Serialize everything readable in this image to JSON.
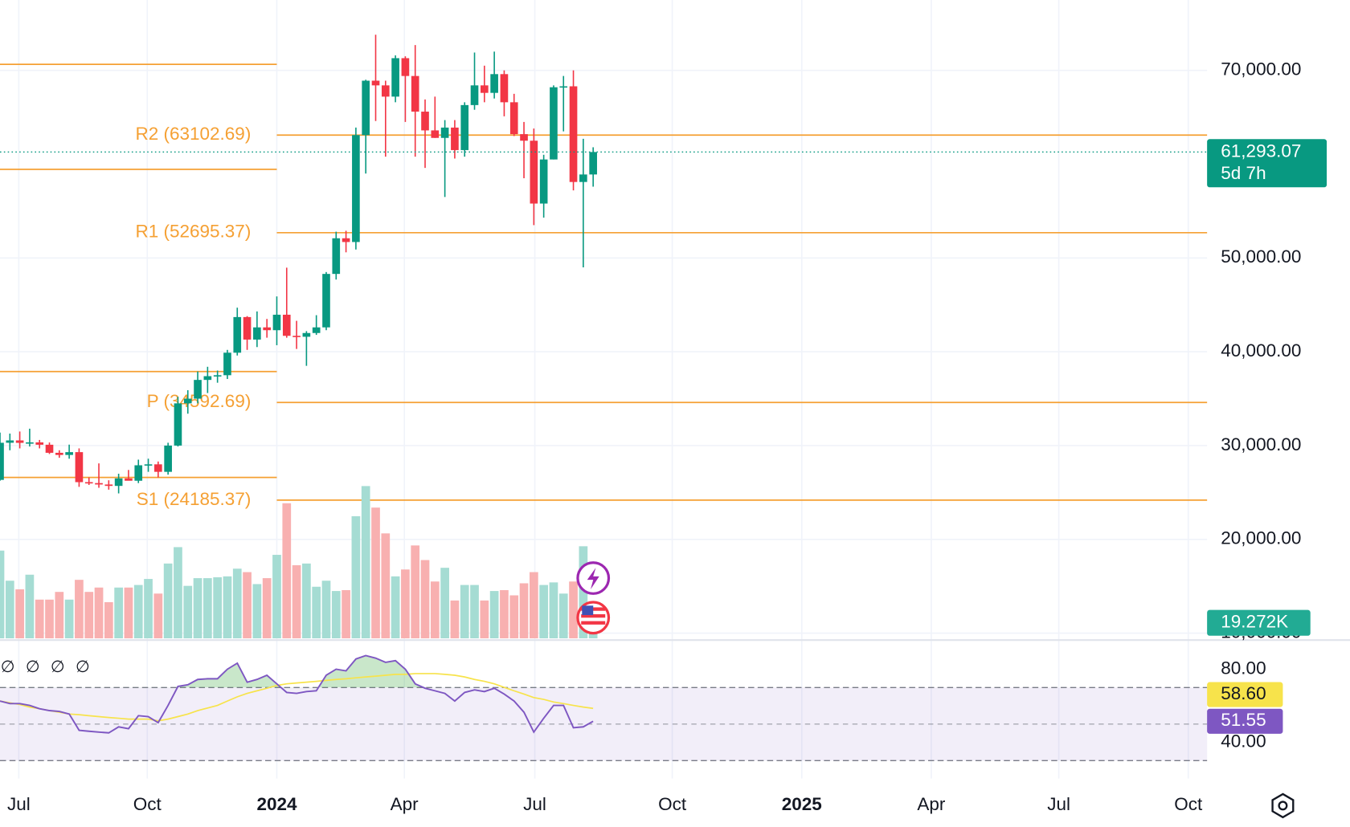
{
  "chart_data": {
    "type": "candlestick",
    "categories": [
      null,
      null,
      null,
      null,
      null,
      null,
      null,
      null,
      null,
      null,
      null,
      null,
      null,
      null,
      null,
      null,
      null,
      null,
      null,
      null,
      null,
      null,
      null,
      null,
      null,
      null,
      null,
      null,
      null,
      null,
      null,
      null,
      null,
      null,
      null,
      null,
      null,
      null,
      null,
      null,
      null,
      null,
      null,
      null,
      null,
      null,
      null,
      null,
      null,
      null,
      null,
      null,
      null,
      null,
      null,
      null,
      null,
      null,
      null,
      null,
      null
    ],
    "open": [
      26340,
      30300,
      30550,
      30290,
      30340,
      30090,
      29230,
      29000,
      29300,
      26100,
      26000,
      25850,
      25700,
      26500,
      26250,
      27900,
      28000,
      27200,
      30000,
      34500,
      35000,
      37000,
      37400,
      37500,
      39900,
      43700,
      41300,
      42600,
      42300,
      43950,
      41700,
      41600,
      42000,
      42600,
      48300,
      52100,
      51700,
      63100,
      68900,
      68400,
      67200,
      71300,
      69400,
      65600,
      63600,
      62800,
      63900,
      61500,
      66300,
      68400,
      67600,
      69600,
      66600,
      63200,
      62500,
      55800,
      60500,
      68200,
      68300,
      58100,
      58900
    ],
    "high": [
      31390,
      31280,
      31500,
      31800,
      30600,
      30330,
      29500,
      30100,
      29700,
      26600,
      28100,
      26300,
      27000,
      27400,
      28500,
      28600,
      28300,
      30300,
      35200,
      35900,
      37900,
      38400,
      38000,
      40200,
      44700,
      43800,
      44300,
      43500,
      45900,
      48970,
      43300,
      42200,
      43900,
      48500,
      52800,
      52900,
      63900,
      69000,
      73800,
      68900,
      71600,
      71500,
      72700,
      66900,
      67200,
      64700,
      64700,
      66600,
      71900,
      70500,
      72000,
      70000,
      67500,
      64500,
      63800,
      61000,
      68400,
      69400,
      70000,
      62700,
      61800
    ],
    "low": [
      26250,
      29500,
      29700,
      29900,
      29700,
      29100,
      28700,
      28600,
      25600,
      25800,
      25500,
      25300,
      24900,
      26300,
      26000,
      27200,
      26600,
      26900,
      29900,
      33400,
      34500,
      35600,
      36700,
      37100,
      39600,
      40200,
      40500,
      41500,
      40700,
      41500,
      40300,
      38500,
      41800,
      42300,
      47700,
      50600,
      50900,
      59000,
      64600,
      60800,
      66600,
      64500,
      60800,
      59600,
      62800,
      56500,
      60600,
      60800,
      65800,
      66600,
      67000,
      65100,
      63000,
      58500,
      53500,
      54300,
      60500,
      63500,
      57200,
      49000,
      57600
    ],
    "close": [
      30300,
      30550,
      30290,
      30340,
      30090,
      29230,
      29000,
      29300,
      26100,
      26000,
      25850,
      25700,
      26500,
      26250,
      27900,
      28000,
      27200,
      30000,
      34500,
      35000,
      37000,
      37400,
      37500,
      39900,
      43700,
      41300,
      42600,
      42300,
      43950,
      41700,
      41600,
      42000,
      42600,
      48300,
      52100,
      51700,
      63100,
      68900,
      68400,
      67200,
      71300,
      69400,
      65600,
      63600,
      62800,
      63900,
      61500,
      66300,
      68400,
      67600,
      69600,
      66600,
      63200,
      62500,
      55800,
      60500,
      68200,
      68300,
      58100,
      58900,
      61293.07
    ],
    "colors": {
      "up": "#089981",
      "down": "#f23645"
    },
    "xlim": [
      0,
      122.1
    ],
    "xticks": [
      {
        "value": 1.9,
        "label": "Jul"
      },
      {
        "value": 14.9,
        "label": "Oct"
      },
      {
        "value": 28.0,
        "label": "2024"
      },
      {
        "value": 40.9,
        "label": "Apr"
      },
      {
        "value": 54.1,
        "label": "Jul"
      },
      {
        "value": 68.0,
        "label": "Oct"
      },
      {
        "value": 81.1,
        "label": "2025"
      },
      {
        "value": 94.2,
        "label": "Apr"
      },
      {
        "value": 107.1,
        "label": "Jul"
      },
      {
        "value": 120.2,
        "label": "Oct"
      }
    ],
    "ylim": [
      9450,
      77500
    ],
    "yticks": [
      {
        "value": 70000,
        "label": "70,000.00"
      },
      {
        "value": 50000,
        "label": "50,000.00"
      },
      {
        "value": 40000,
        "label": "40,000.00"
      },
      {
        "value": 30000,
        "label": "30,000.00"
      },
      {
        "value": 20000,
        "label": "20,000.00"
      },
      {
        "value": 10000,
        "label": "10,000.00"
      }
    ],
    "grid": true,
    "pivot_color": "#f5a033",
    "pivots": [
      {
        "label": "R2 (63102.69)",
        "value": 63102.69
      },
      {
        "label": "R1 (52695.37)",
        "value": 52695.37
      },
      {
        "label": "P (34592.69)",
        "value": 34592.69
      },
      {
        "label": "S1 (24185.37)",
        "value": 24185.37
      }
    ],
    "previous_pivots": [
      70642,
      59450,
      37890,
      26606
    ],
    "price_label": {
      "label": "61,293.07",
      "countdown": "5d 7h",
      "color": "#089981"
    },
    "volume": {
      "values": [
        109.2,
        71.7,
        61.0,
        79.2,
        48.2,
        48.2,
        57.8,
        48.2,
        72.8,
        57.8,
        63.2,
        45.0,
        63.2,
        63.2,
        66.4,
        73.9,
        55.7,
        93.1,
        113.5,
        65.3,
        74.9,
        74.9,
        76.0,
        77.1,
        86.7,
        82.4,
        67.5,
        74.9,
        103.9,
        168.1,
        91.0,
        93.1,
        64.2,
        71.7,
        58.9,
        60.0,
        152.0,
        189.5,
        162.7,
        130.6,
        77.1,
        85.7,
        115.6,
        97.4,
        70.7,
        87.8,
        47.1,
        66.4,
        66.4,
        47.1,
        58.9,
        60.0,
        53.5,
        68.5,
        82.4,
        66.4,
        69.6,
        55.7,
        70.7,
        114.6,
        19.272
      ],
      "ylim": [
        0,
        794.4
      ],
      "label": "19.272K",
      "colors": {
        "up": "#a5dcd3",
        "down": "#f8b0b0",
        "label": "#22ab94"
      }
    },
    "rsi": {
      "values": [
        62.6,
        61.2,
        61.2,
        60.2,
        58.4,
        57.4,
        56.9,
        55.5,
        46.6,
        46.1,
        45.6,
        45.2,
        48.5,
        47.5,
        54.6,
        54.1,
        50.8,
        60.2,
        70.6,
        71.5,
        74.4,
        74.8,
        74.8,
        80.0,
        83.3,
        72.9,
        74.4,
        76.7,
        72.0,
        67.3,
        66.8,
        67.8,
        68.2,
        76.7,
        80.0,
        79.1,
        85.6,
        87.5,
        86.1,
        83.8,
        84.7,
        80.0,
        72.0,
        69.6,
        68.2,
        66.8,
        62.6,
        67.3,
        68.7,
        67.8,
        69.6,
        66.4,
        62.6,
        56.5,
        45.6,
        53.2,
        60.2,
        60.2,
        48.0,
        48.5,
        51.55
      ],
      "ma_values": [
        62.6,
        61.6,
        60.7,
        59.3,
        58.4,
        57.4,
        56.5,
        55.5,
        55.1,
        54.6,
        54.1,
        53.6,
        53.2,
        52.7,
        52.7,
        52.7,
        51.8,
        52.7,
        54.1,
        55.5,
        57.4,
        58.8,
        60.2,
        62.6,
        64.9,
        66.8,
        68.2,
        69.6,
        71.1,
        72.0,
        72.5,
        72.9,
        73.4,
        73.9,
        74.4,
        74.8,
        75.3,
        75.8,
        76.2,
        76.7,
        77.2,
        77.2,
        77.6,
        77.6,
        77.6,
        77.2,
        76.7,
        75.8,
        74.4,
        73.4,
        72.0,
        70.1,
        68.2,
        66.4,
        64.5,
        63.5,
        62.1,
        61.2,
        60.2,
        59.3,
        58.6
      ],
      "value_label": "51.55",
      "ma_value_label": "58.60",
      "color": "#7e57c2",
      "ma_color": "#f7e34b",
      "fill_color": "#4caf50",
      "ylim": [
        20.2,
        95.5
      ],
      "yticks": [
        {
          "value": 80,
          "label": "80.00"
        },
        {
          "value": 40,
          "label": "40.00"
        }
      ],
      "bands": [
        70,
        50,
        30
      ],
      "status": [
        "∅",
        "∅",
        "∅",
        "∅"
      ]
    }
  }
}
